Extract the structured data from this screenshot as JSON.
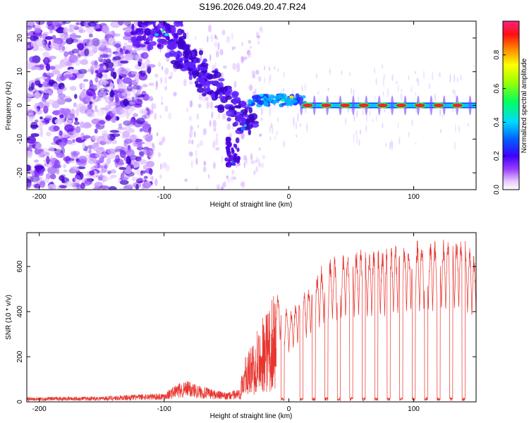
{
  "title": "S196.2026.049.20.47.R24",
  "chart_data": [
    {
      "type": "heatmap",
      "id": "spectrogram",
      "xlabel": "Height of straight line (km)",
      "ylabel": "Frequency (Hz)",
      "xlim": [
        -210,
        150
      ],
      "ylim": [
        -25,
        25
      ],
      "xticks": [
        -200,
        -100,
        0,
        100
      ],
      "yticks": [
        -20,
        -10,
        0,
        10,
        20
      ],
      "colorbar": {
        "label": "Normalized spectral amplitude",
        "range": [
          0,
          1
        ],
        "ticks": [
          0.0,
          0.2,
          0.4,
          0.6,
          0.8
        ]
      },
      "carrier_peaks_km": [
        15,
        30,
        45,
        60,
        75,
        90,
        105,
        120,
        135
      ],
      "carrier_frequency_hz": 0
    },
    {
      "type": "line",
      "id": "snr",
      "xlabel": "Height of straight line (km)",
      "ylabel": "SNR (10 * v/v)",
      "xlim": [
        -210,
        150
      ],
      "ylim": [
        0,
        750
      ],
      "xticks": [
        -200,
        -100,
        0,
        100
      ],
      "yticks": [
        0,
        200,
        400,
        600
      ],
      "color": "#e8362f",
      "envelope": {
        "x": [
          -210,
          -150,
          -100,
          -90,
          -80,
          -70,
          -50,
          -40,
          -35,
          -30,
          -25,
          -20,
          -15,
          -10,
          -5,
          0,
          10,
          20,
          30,
          40,
          50,
          60,
          80,
          100,
          120,
          140,
          150
        ],
        "y": [
          20,
          25,
          40,
          80,
          95,
          70,
          40,
          60,
          200,
          250,
          370,
          380,
          440,
          500,
          470,
          400,
          480,
          560,
          640,
          660,
          680,
          680,
          690,
          720,
          730,
          740,
          650
        ]
      },
      "dropout_centers_km": [
        -5,
        10,
        20,
        30,
        40,
        50,
        60,
        70,
        80,
        90,
        100,
        110,
        120,
        130,
        140
      ]
    }
  ]
}
